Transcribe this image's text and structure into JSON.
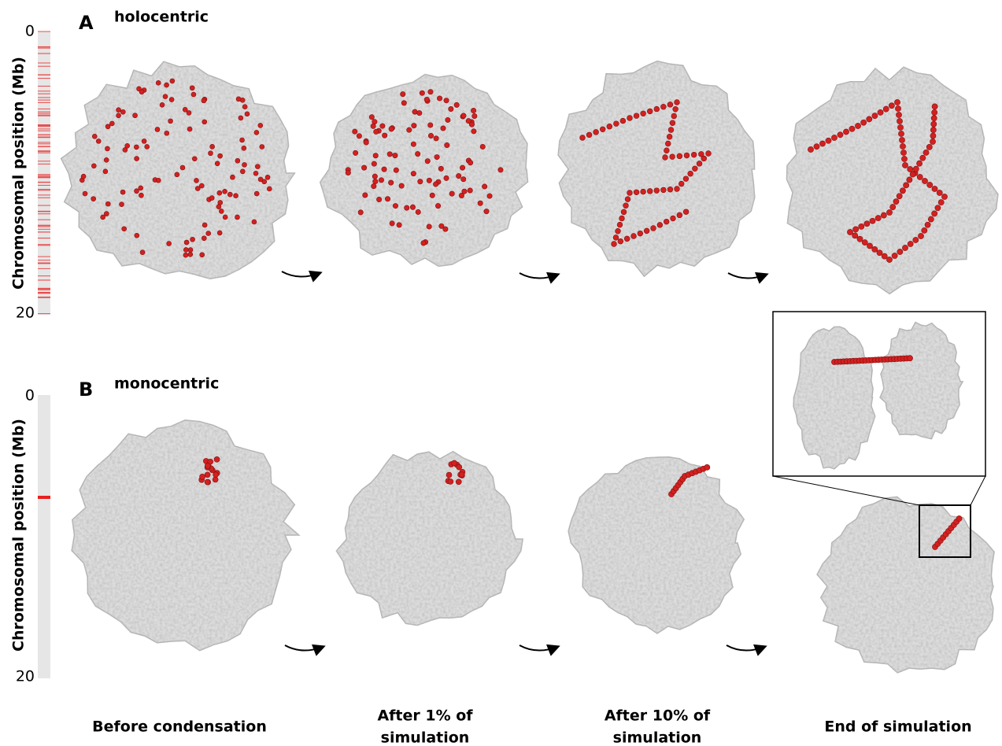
{
  "panels": [
    {
      "label": "A",
      "title": "holocentric",
      "axis_label": "Chromosomal position (Mb)",
      "axis_ticks": [
        "0",
        "20"
      ]
    },
    {
      "label": "B",
      "title": "monocentric",
      "axis_label": "Chromosomal position (Mb)",
      "axis_ticks": [
        "0",
        "20"
      ]
    }
  ],
  "stages": [
    [
      "Before condensation"
    ],
    [
      "After 1% of",
      "simulation"
    ],
    [
      "After 10% of",
      "simulation"
    ],
    [
      "End of simulation"
    ]
  ]
}
